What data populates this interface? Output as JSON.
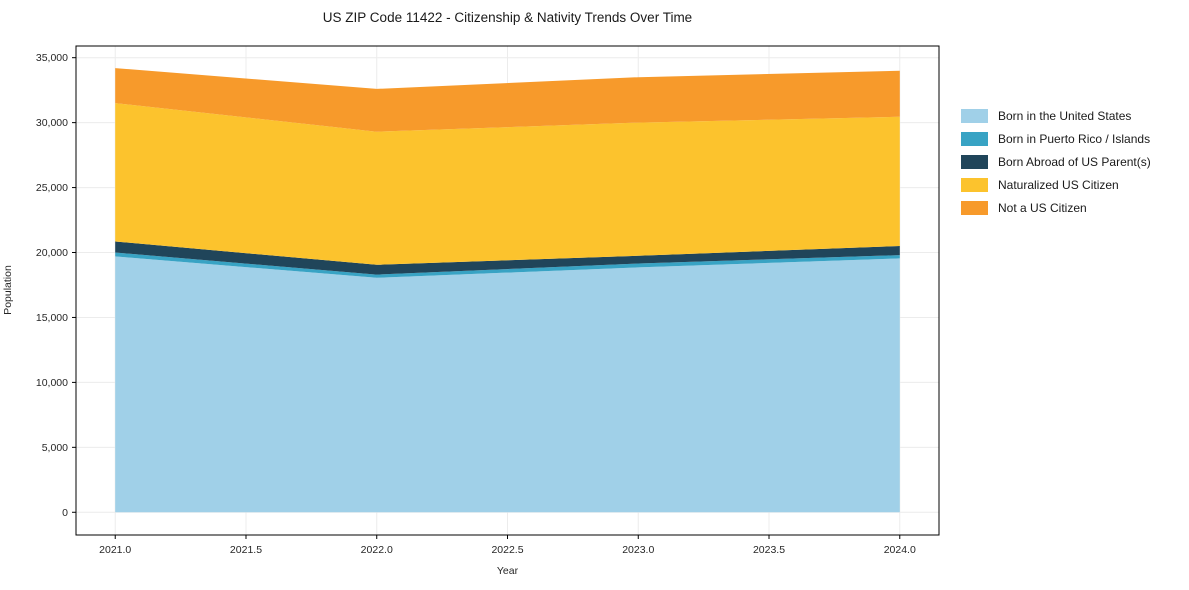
{
  "title": "US ZIP Code 11422 - Citizenship & Nativity Trends Over Time",
  "chart_data": {
    "type": "area",
    "stacked": true,
    "title": "US ZIP Code 11422 - Citizenship & Nativity Trends Over Time",
    "xlabel": "Year",
    "ylabel": "Population",
    "x": [
      2021,
      2022,
      2023,
      2024
    ],
    "series": [
      {
        "name": "Born in the United States",
        "color": "#A0D0E8",
        "values": [
          19700,
          18050,
          18850,
          19550
        ]
      },
      {
        "name": "Born in Puerto Rico / Islands",
        "color": "#38A3C4",
        "values": [
          300,
          250,
          300,
          250
        ]
      },
      {
        "name": "Born Abroad of US Parent(s)",
        "color": "#20455A",
        "values": [
          850,
          750,
          600,
          700
        ]
      },
      {
        "name": "Naturalized US Citizen",
        "color": "#FCC32D",
        "values": [
          10650,
          10250,
          10250,
          9950
        ]
      },
      {
        "name": "Not a US Citizen",
        "color": "#F79A2B",
        "values": [
          2700,
          3300,
          3500,
          3550
        ]
      }
    ],
    "xlim": [
      2020.85,
      2024.15
    ],
    "ylim": [
      -1750,
      35900
    ],
    "xticks": [
      2021.0,
      2021.5,
      2022.0,
      2022.5,
      2023.0,
      2023.5,
      2024.0
    ],
    "yticks": [
      0,
      5000,
      10000,
      15000,
      20000,
      25000,
      30000,
      35000
    ],
    "grid": true,
    "grid_color": "#ececec",
    "spine_color": "#000000",
    "tick_label_color": "#262626",
    "legend_position": "right-outside"
  }
}
